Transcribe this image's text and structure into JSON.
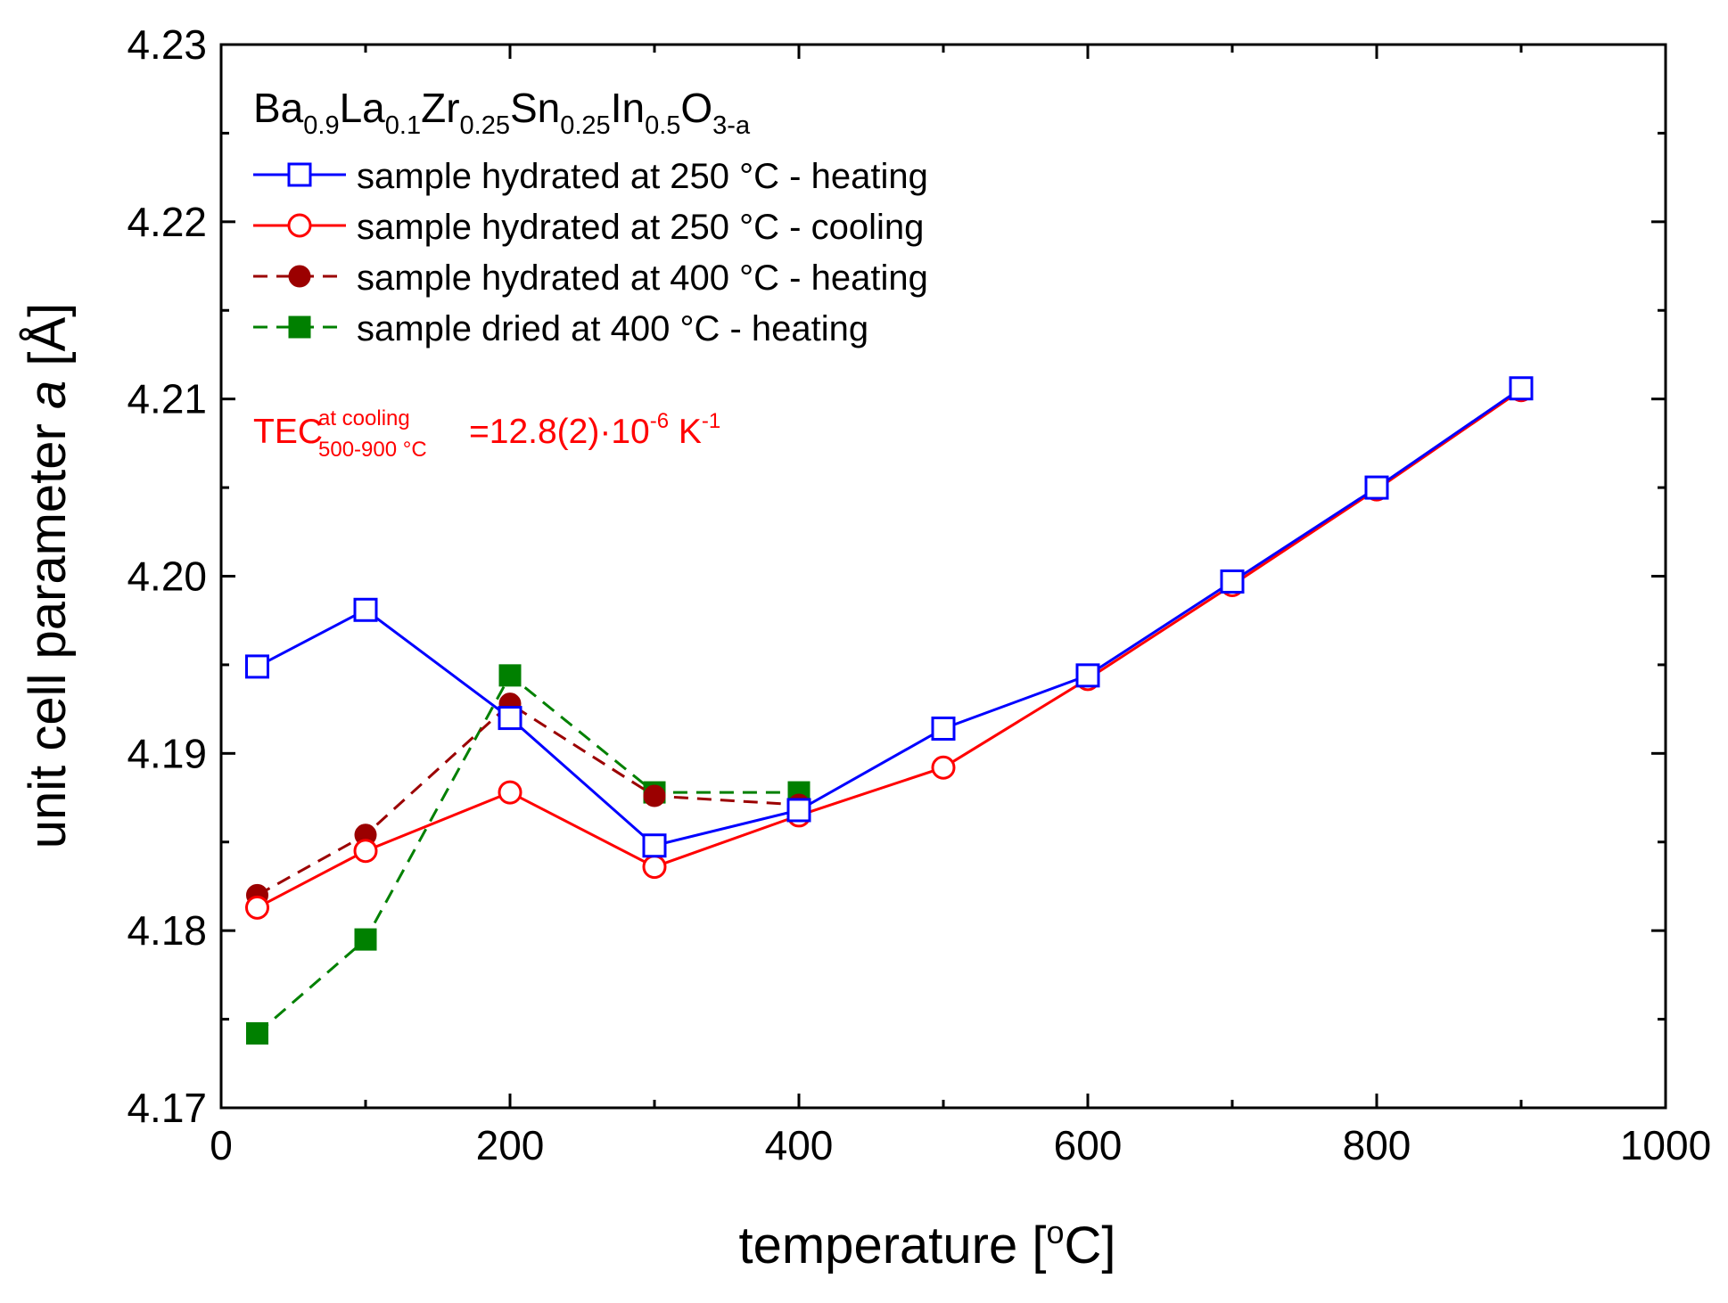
{
  "chart_data": {
    "type": "line",
    "xlabel": {
      "text": "temperature [",
      "sup": "o",
      "tail": "C]"
    },
    "ylabel": {
      "pre": "unit cell parameter ",
      "italic": "a",
      "post": " [Å]"
    },
    "xlim": [
      0,
      1000
    ],
    "ylim": [
      4.17,
      4.23
    ],
    "x_ticks": [
      0,
      200,
      400,
      600,
      800,
      1000
    ],
    "x_tick_labels": [
      "0",
      "200",
      "400",
      "600",
      "800",
      "1000"
    ],
    "y_ticks": [
      4.17,
      4.18,
      4.19,
      4.2,
      4.21,
      4.22,
      4.23
    ],
    "y_tick_labels": [
      "4.17",
      "4.18",
      "4.19",
      "4.20",
      "4.21",
      "4.22",
      "4.23"
    ],
    "grid": false,
    "legend_position": "top-left",
    "formula": [
      {
        "t": "Ba",
        "s": "n"
      },
      {
        "t": "0.9",
        "s": "sub"
      },
      {
        "t": "La",
        "s": "n"
      },
      {
        "t": "0.1",
        "s": "sub"
      },
      {
        "t": "Zr",
        "s": "n"
      },
      {
        "t": "0.25",
        "s": "sub"
      },
      {
        "t": "Sn",
        "s": "n"
      },
      {
        "t": "0.25",
        "s": "sub"
      },
      {
        "t": "In",
        "s": "n"
      },
      {
        "t": "0.5",
        "s": "sub"
      },
      {
        "t": "O",
        "s": "n"
      },
      {
        "t": "3-a",
        "s": "sub"
      }
    ],
    "annotation": {
      "color": "#ff0000",
      "parts": [
        {
          "t": "TEC",
          "s": "n"
        },
        {
          "t": "at cooling",
          "s": "sup"
        },
        {
          "t": "500-900 °C",
          "s": "sub"
        },
        {
          "t": "=12.8(2)·10",
          "s": "n"
        },
        {
          "t": "-6",
          "s": "sup"
        },
        {
          "t": " K",
          "s": "n"
        },
        {
          "t": "-1",
          "s": "sup"
        }
      ]
    },
    "series": [
      {
        "name": "sample hydrated at 250 °C - heating",
        "color": "#0000ff",
        "line": "solid",
        "marker": "square-open",
        "x": [
          25,
          100,
          200,
          300,
          400,
          500,
          600,
          700,
          800,
          900
        ],
        "y": [
          4.1949,
          4.1981,
          4.192,
          4.1848,
          4.1868,
          4.1914,
          4.1944,
          4.1997,
          4.205,
          4.2106
        ]
      },
      {
        "name": "sample hydrated at 250 °C - cooling",
        "color": "#ff0000",
        "line": "solid",
        "marker": "circle-open",
        "x": [
          25,
          100,
          200,
          300,
          400,
          500,
          600,
          700,
          800,
          900
        ],
        "y": [
          4.1813,
          4.1845,
          4.1878,
          4.1836,
          4.1865,
          4.1892,
          4.1942,
          4.1995,
          4.2049,
          4.2105
        ]
      },
      {
        "name": "sample hydrated at 400 °C - heating",
        "color": "#9b0000",
        "line": "dashed",
        "marker": "circle-filled",
        "x": [
          25,
          100,
          200,
          300,
          400
        ],
        "y": [
          4.182,
          4.1854,
          4.1928,
          4.1876,
          4.1871
        ]
      },
      {
        "name": "sample dried at 400 °C - heating",
        "color": "#008000",
        "line": "dashed",
        "marker": "square-filled",
        "x": [
          25,
          100,
          200,
          300,
          400
        ],
        "y": [
          4.1742,
          4.1795,
          4.1944,
          4.1878,
          4.1878
        ]
      }
    ]
  }
}
